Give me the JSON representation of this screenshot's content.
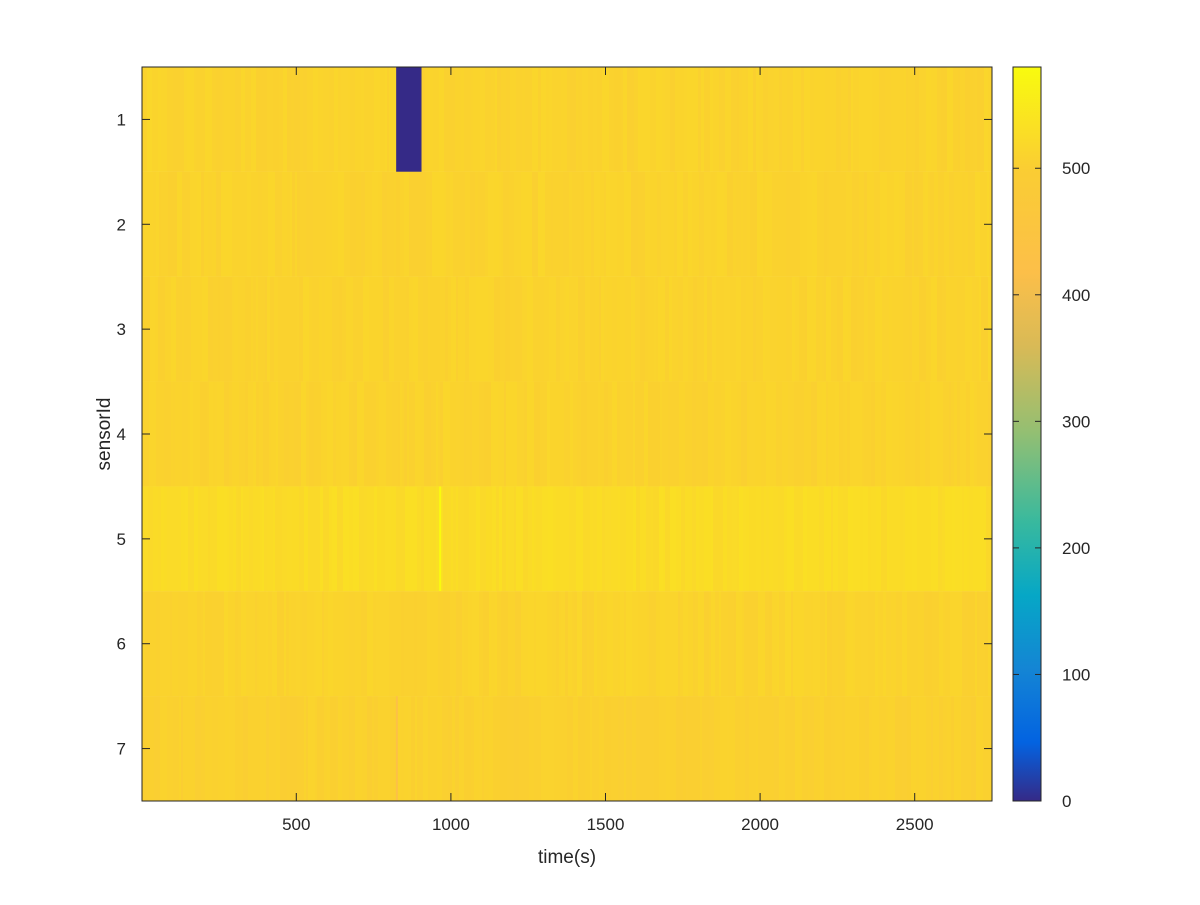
{
  "chart_data": {
    "type": "heatmap",
    "title": "",
    "xlabel": "time(s)",
    "ylabel": "sensorId",
    "x_range": [
      1,
      2750
    ],
    "y_categories": [
      1,
      2,
      3,
      4,
      5,
      6,
      7
    ],
    "x_ticks": [
      500,
      1000,
      1500,
      2000,
      2500
    ],
    "y_ticks": [
      1,
      2,
      3,
      4,
      5,
      6,
      7
    ],
    "colorbar": {
      "range": [
        0,
        580
      ],
      "ticks": [
        0,
        100,
        200,
        300,
        400,
        500
      ],
      "colormap": "parula",
      "placement": "right"
    },
    "rows": [
      {
        "sensor": 1,
        "base_value": 510,
        "anomalies": [
          {
            "x_start": 823,
            "x_end": 905,
            "value": 0
          }
        ]
      },
      {
        "sensor": 2,
        "base_value": 510,
        "anomalies": []
      },
      {
        "sensor": 3,
        "base_value": 510,
        "anomalies": []
      },
      {
        "sensor": 4,
        "base_value": 510,
        "anomalies": []
      },
      {
        "sensor": 5,
        "base_value": 525,
        "anomalies": [
          {
            "x_start": 962,
            "x_end": 968,
            "value": 580
          }
        ]
      },
      {
        "sensor": 6,
        "base_value": 510,
        "anomalies": []
      },
      {
        "sensor": 7,
        "base_value": 505,
        "anomalies": [
          {
            "x_start": 822,
            "x_end": 828,
            "value": 430
          }
        ]
      }
    ]
  }
}
